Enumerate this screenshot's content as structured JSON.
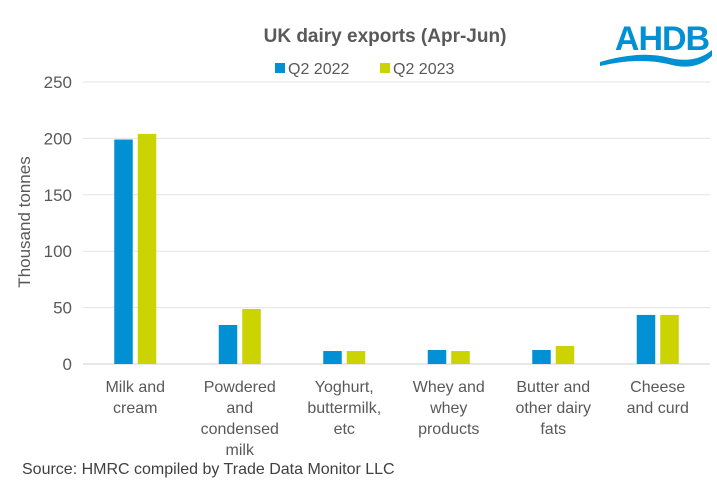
{
  "chart_data": {
    "type": "bar",
    "title": "UK dairy exports (Apr-Jun)",
    "ylabel": "Thousand tonnes",
    "xlabel": "",
    "ylim": [
      0,
      250
    ],
    "yticks": [
      0,
      50,
      100,
      150,
      200,
      250
    ],
    "grid": true,
    "legend_position": "top",
    "categories": [
      [
        "Milk and",
        "cream"
      ],
      [
        "Powdered",
        "and",
        "condensed",
        "milk"
      ],
      [
        "Yoghurt,",
        "buttermilk,",
        "etc"
      ],
      [
        "Whey and",
        "whey",
        "products"
      ],
      [
        "Butter and",
        "other dairy",
        "fats"
      ],
      [
        "Cheese",
        "and curd"
      ]
    ],
    "series": [
      {
        "name": "Q2 2022",
        "color": "#0290D4",
        "values": [
          199,
          34.6,
          11.5,
          12.4,
          12.4,
          43.5
        ]
      },
      {
        "name": "Q2 2023",
        "color": "#CBD400",
        "values": [
          204,
          48.8,
          11.5,
          11.5,
          16,
          43.5
        ]
      }
    ],
    "source": "Source: HMRC compiled by Trade Data Monitor LLC"
  },
  "logo": {
    "text": "AHDB",
    "color": "#0290D4"
  }
}
